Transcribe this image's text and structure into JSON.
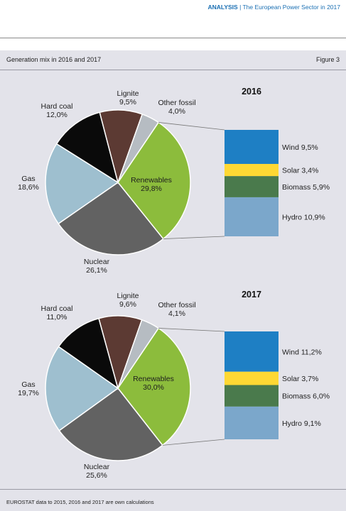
{
  "header": {
    "brand": "ANALYSIS",
    "separator": " | ",
    "title": "The European Power Sector in 2017"
  },
  "figure": {
    "title": "Generation mix in 2016 and 2017",
    "number": "Figure 3",
    "source": "EUROSTAT data to 2015, 2016 and 2017 are own calculations"
  },
  "colors": {
    "renewables": "#8cbc3c",
    "other_fossil": "#b6bcc2",
    "lignite": "#5c3a33",
    "hard_coal": "#0a0a0a",
    "gas": "#9ebfcf",
    "nuclear": "#626262",
    "wind": "#1e7fc4",
    "solar": "#fed834",
    "biomass": "#4a7a4c",
    "hydro": "#7ba7cb",
    "connector": "#777777",
    "slice_border": "#ffffff"
  },
  "chart_data": [
    {
      "type": "pie",
      "year": "2016",
      "slices": [
        {
          "name": "Renewables",
          "value": 29.8,
          "label": "29,8%"
        },
        {
          "name": "Nuclear",
          "value": 26.1,
          "label": "26,1%"
        },
        {
          "name": "Gas",
          "value": 18.6,
          "label": "18,6%"
        },
        {
          "name": "Hard coal",
          "value": 12.0,
          "label": "12,0%"
        },
        {
          "name": "Lignite",
          "value": 9.5,
          "label": "9,5%"
        },
        {
          "name": "Other fossil",
          "value": 4.0,
          "label": "4,0%"
        }
      ],
      "breakdown": [
        {
          "name": "Wind",
          "value": 9.5,
          "label": "9,5%"
        },
        {
          "name": "Solar",
          "value": 3.4,
          "label": "3,4%"
        },
        {
          "name": "Biomass",
          "value": 5.9,
          "label": "5,9%"
        },
        {
          "name": "Hydro",
          "value": 10.9,
          "label": "10,9%"
        }
      ]
    },
    {
      "type": "pie",
      "year": "2017",
      "slices": [
        {
          "name": "Renewables",
          "value": 30.0,
          "label": "30,0%"
        },
        {
          "name": "Nuclear",
          "value": 25.6,
          "label": "25,6%"
        },
        {
          "name": "Gas",
          "value": 19.7,
          "label": "19,7%"
        },
        {
          "name": "Hard coal",
          "value": 11.0,
          "label": "11,0%"
        },
        {
          "name": "Lignite",
          "value": 9.6,
          "label": "9,6%"
        },
        {
          "name": "Other fossil",
          "value": 4.1,
          "label": "4,1%"
        }
      ],
      "breakdown": [
        {
          "name": "Wind",
          "value": 11.2,
          "label": "11,2%"
        },
        {
          "name": "Solar",
          "value": 3.7,
          "label": "3,7%"
        },
        {
          "name": "Biomass",
          "value": 6.0,
          "label": "6,0%"
        },
        {
          "name": "Hydro",
          "value": 9.1,
          "label": "9,1%"
        }
      ]
    }
  ]
}
